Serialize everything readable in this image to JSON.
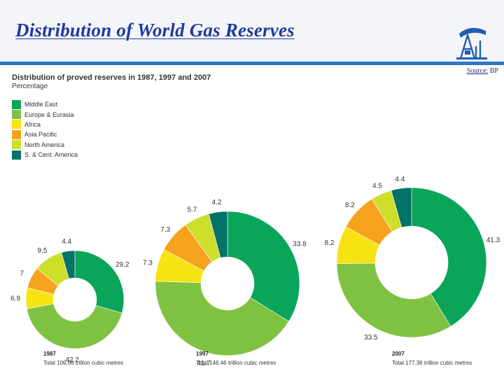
{
  "slide": {
    "title": "Distribution of World Gas Reserves",
    "source_prefix": "Source:",
    "source_name": "BP"
  },
  "chart_data": {
    "type": "pie",
    "variant": "donut",
    "title": "Distribution of proved reserves in 1987, 1997 and 2007",
    "subtitle": "Percentage",
    "categories": [
      "Middle East",
      "Europe & Eurasia",
      "Africa",
      "Asia Pacific",
      "North America",
      "S. & Cent. America"
    ],
    "colors": [
      "#0aa55a",
      "#7fc242",
      "#f7e312",
      "#f7a21d",
      "#cddf2b",
      "#047367"
    ],
    "legend_position": "top-left",
    "series": [
      {
        "name": "1987",
        "total": "Total 106.66 trillion cubic metres",
        "values": [
          29.2,
          42.2,
          6.9,
          7.0,
          9.5,
          4.4
        ]
      },
      {
        "name": "1997",
        "total": "Total 146.46 trillion cubic metres",
        "values": [
          33.8,
          41.7,
          7.3,
          7.3,
          5.7,
          4.2
        ]
      },
      {
        "name": "2007",
        "total": "Total 177.36 trillion cubic metres",
        "values": [
          41.3,
          33.5,
          8.2,
          8.2,
          4.5,
          4.4
        ]
      }
    ]
  }
}
